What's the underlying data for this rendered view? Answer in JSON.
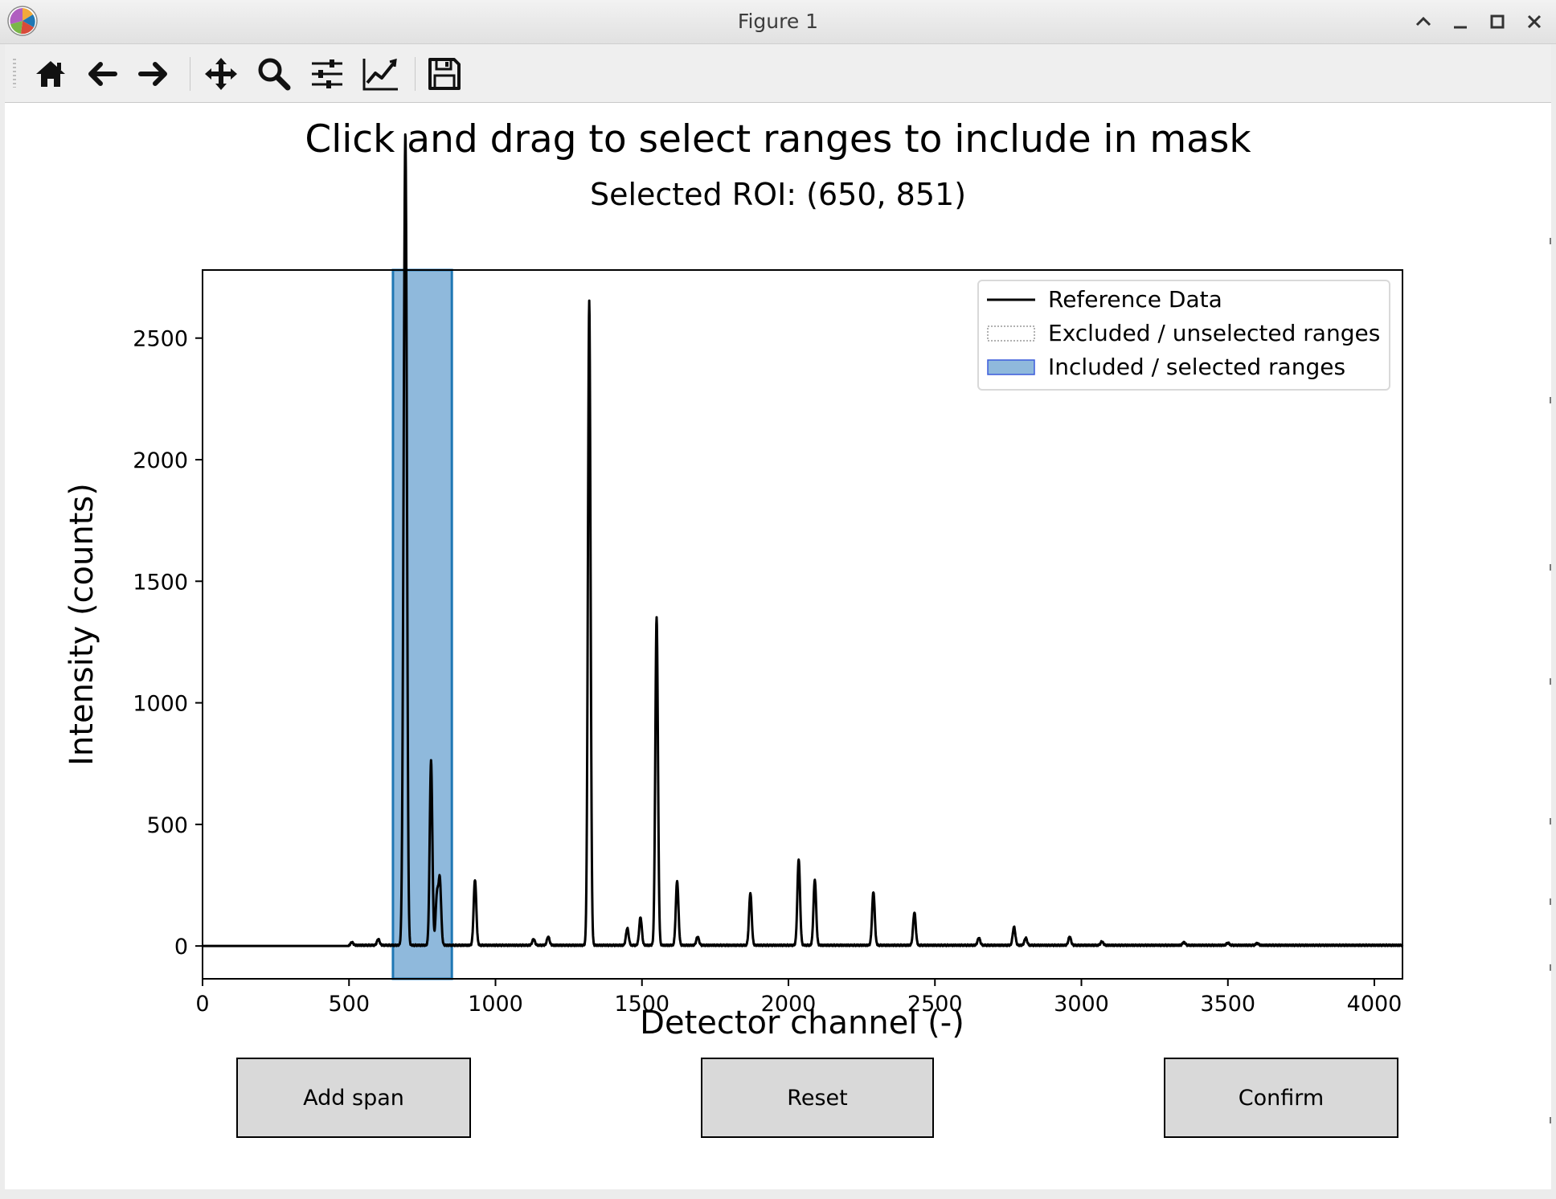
{
  "window": {
    "title": "Figure 1",
    "controls": [
      "chevron-up-icon",
      "minimize-icon",
      "maximize-icon",
      "close-icon"
    ]
  },
  "toolbar": {
    "buttons": [
      {
        "name": "home",
        "icon": "home-icon"
      },
      {
        "name": "back",
        "icon": "arrow-left-icon"
      },
      {
        "name": "forward",
        "icon": "arrow-right-icon"
      },
      {
        "name": "pan",
        "icon": "move-icon"
      },
      {
        "name": "zoom",
        "icon": "magnifier-icon"
      },
      {
        "name": "subplots",
        "icon": "sliders-icon"
      },
      {
        "name": "edit-axes",
        "icon": "line-chart-icon"
      },
      {
        "name": "save",
        "icon": "floppy-disk-icon"
      }
    ]
  },
  "figure": {
    "title": "Click and drag to select ranges to include in mask",
    "subtitle": "Selected ROI: (650, 851)"
  },
  "buttons": {
    "add_span": "Add span",
    "reset": "Reset",
    "confirm": "Confirm"
  },
  "chart_data": {
    "type": "line",
    "xlabel": "Detector channel (-)",
    "ylabel": "Intensity (counts)",
    "xlim": [
      0,
      4096
    ],
    "ylim": [
      -135,
      2780
    ],
    "xticks": [
      0,
      500,
      1000,
      1500,
      2000,
      2500,
      3000,
      3500,
      4000
    ],
    "yticks": [
      0,
      500,
      1000,
      1500,
      2000,
      2500
    ],
    "grid": false,
    "legend_position": "top-right",
    "colors": {
      "line": "#000000",
      "selection_fill": "#8fb9dc",
      "selection_edge": "#1f77b4",
      "legend_patch_fill": "#8fb9dc",
      "legend_patch_edge": "#3b5bdb"
    },
    "legend": [
      "Reference Data",
      "Excluded / unselected ranges",
      "Included / selected ranges"
    ],
    "series": [
      {
        "name": "Reference Data",
        "baseline_start": 500,
        "baseline_end": 4096,
        "peaks": [
          {
            "x": 510,
            "y": 12
          },
          {
            "x": 600,
            "y": 25
          },
          {
            "x": 688,
            "y": 1450
          },
          {
            "x": 694,
            "y": 2600
          },
          {
            "x": 780,
            "y": 760
          },
          {
            "x": 800,
            "y": 200
          },
          {
            "x": 810,
            "y": 265
          },
          {
            "x": 930,
            "y": 270
          },
          {
            "x": 1130,
            "y": 25
          },
          {
            "x": 1180,
            "y": 35
          },
          {
            "x": 1320,
            "y": 2650
          },
          {
            "x": 1450,
            "y": 70
          },
          {
            "x": 1495,
            "y": 115
          },
          {
            "x": 1550,
            "y": 1350
          },
          {
            "x": 1620,
            "y": 265
          },
          {
            "x": 1690,
            "y": 35
          },
          {
            "x": 1870,
            "y": 215
          },
          {
            "x": 2035,
            "y": 355
          },
          {
            "x": 2090,
            "y": 270
          },
          {
            "x": 2290,
            "y": 220
          },
          {
            "x": 2430,
            "y": 135
          },
          {
            "x": 2650,
            "y": 30
          },
          {
            "x": 2770,
            "y": 75
          },
          {
            "x": 2810,
            "y": 30
          },
          {
            "x": 2960,
            "y": 35
          },
          {
            "x": 3070,
            "y": 15
          },
          {
            "x": 3350,
            "y": 12
          },
          {
            "x": 3500,
            "y": 10
          },
          {
            "x": 3600,
            "y": 8
          }
        ]
      }
    ],
    "selected_spans": [
      [
        650,
        851
      ]
    ]
  }
}
